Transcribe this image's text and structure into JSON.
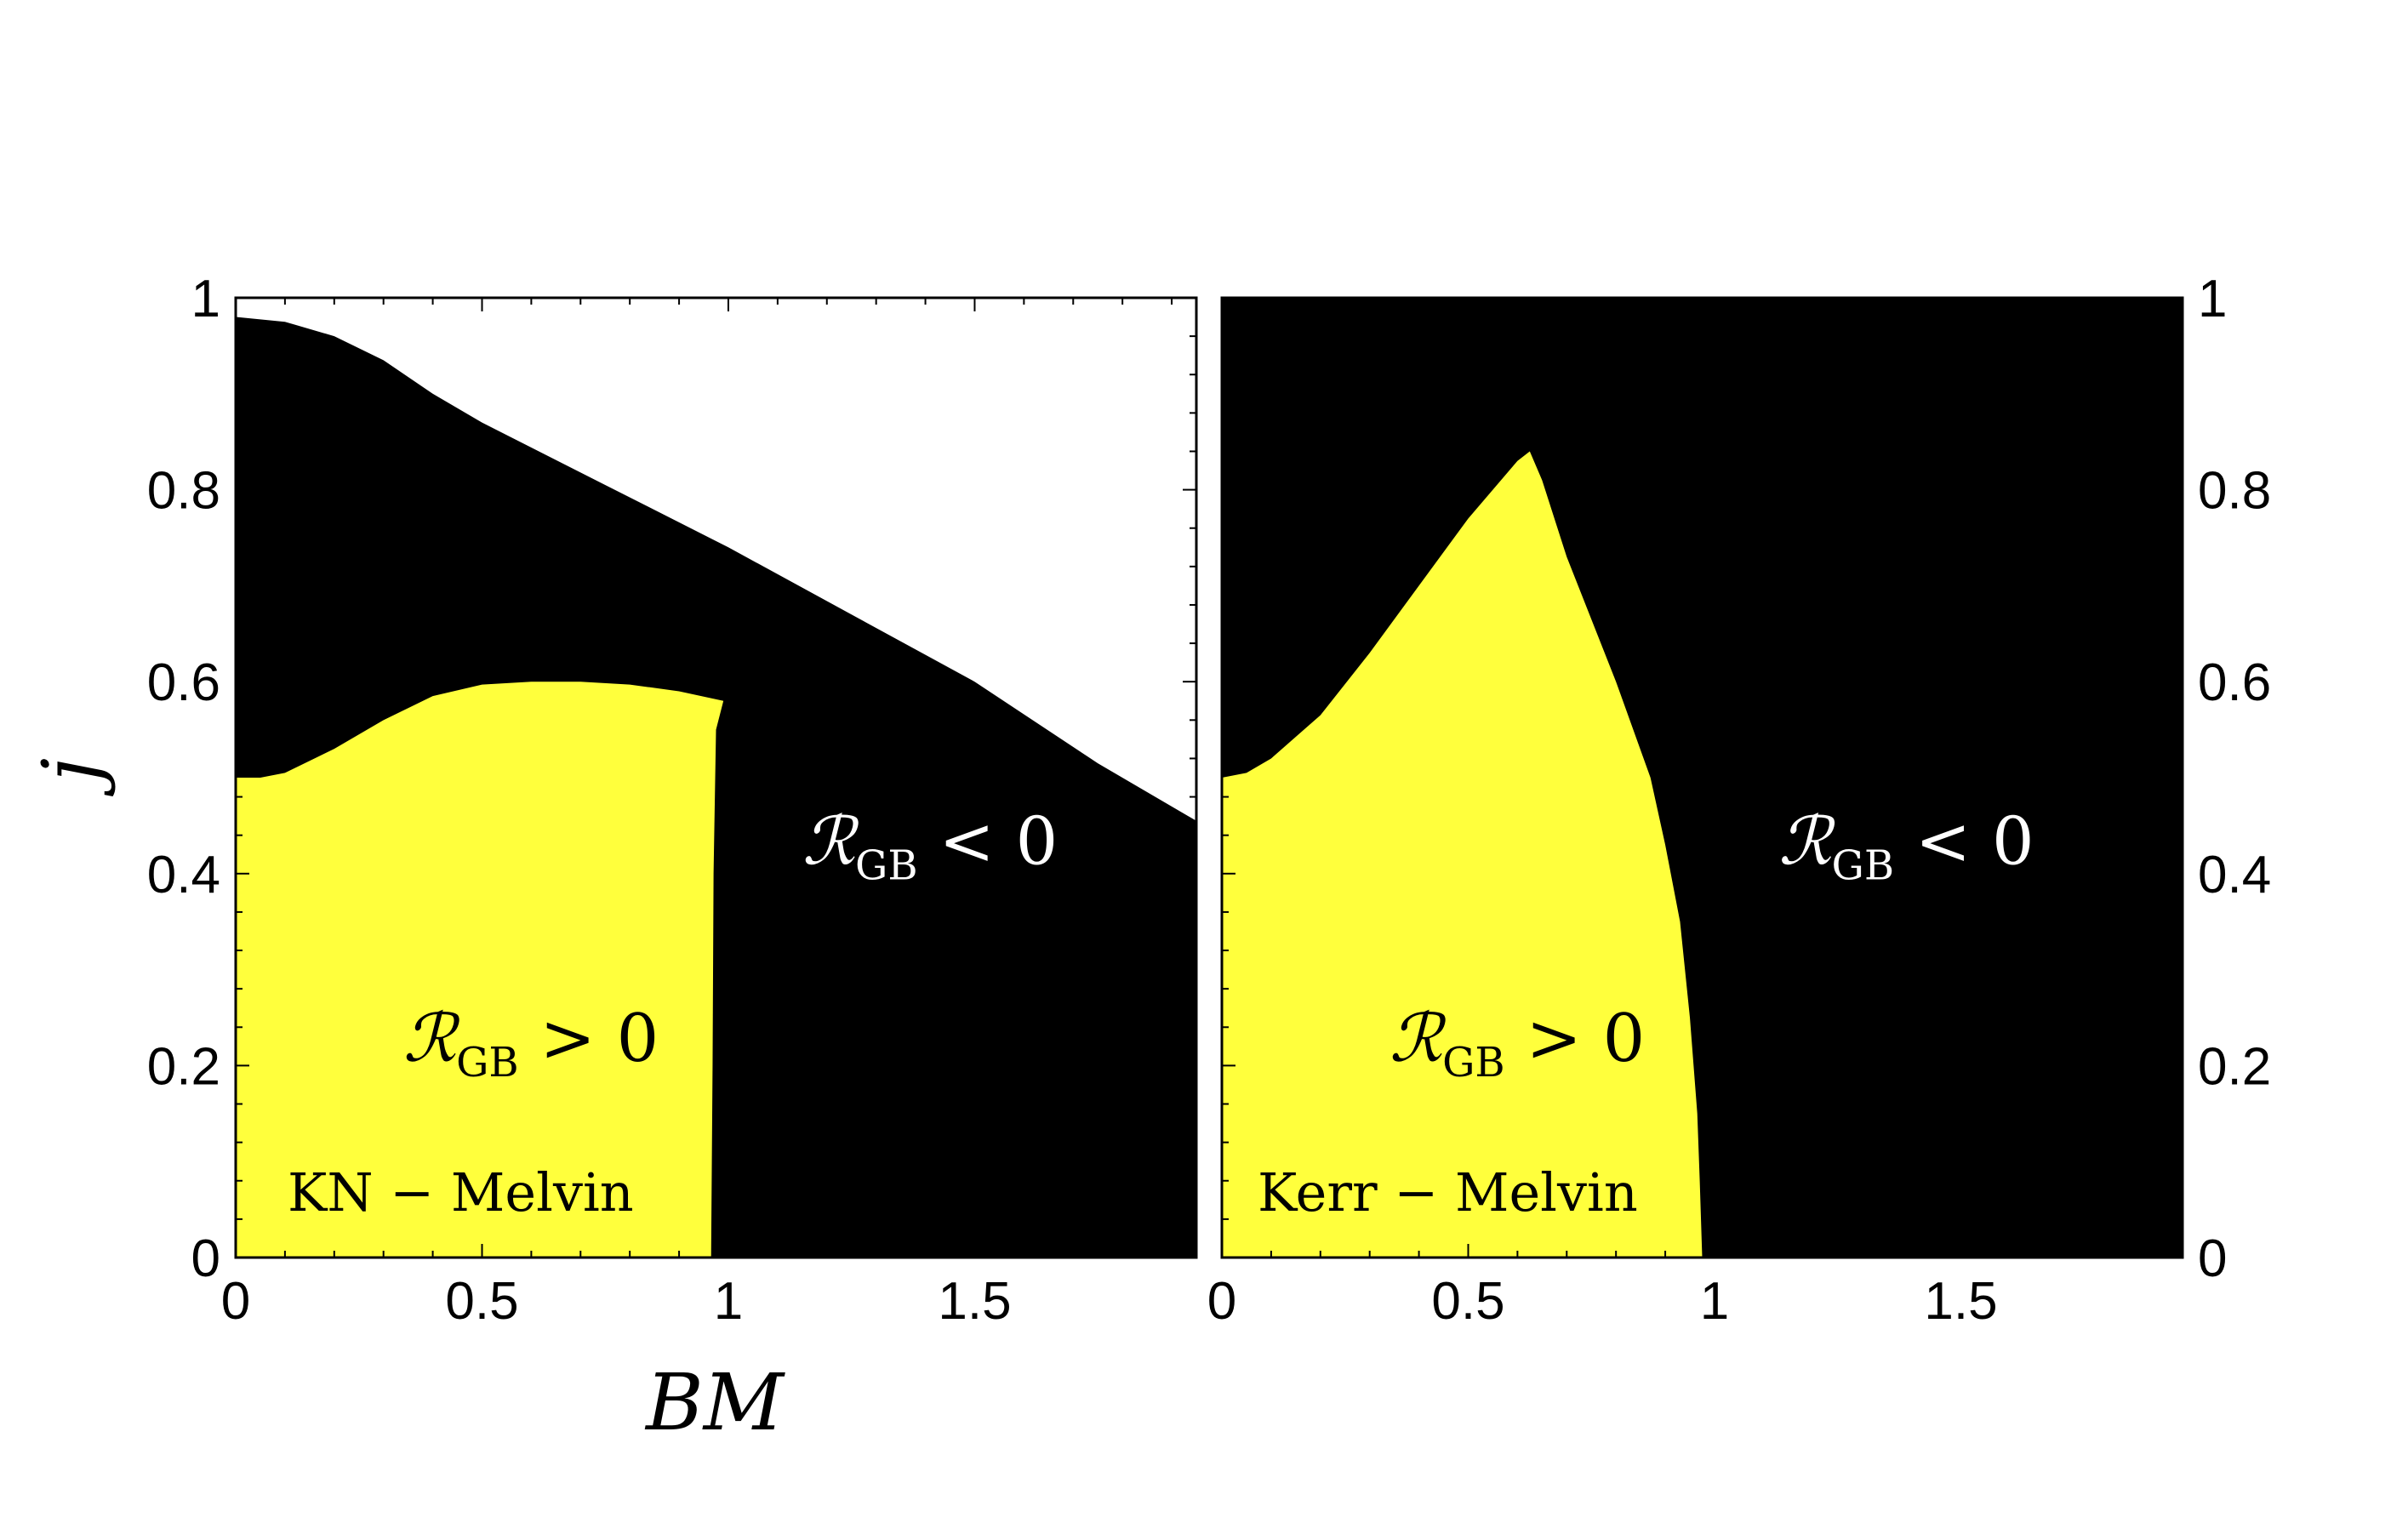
{
  "chart_data": [
    {
      "type": "area",
      "panel_label": "KN − Melvin",
      "xlabel": "BM",
      "ylabel": "j",
      "xlim": [
        0,
        1.95
      ],
      "ylim": [
        0,
        1.0
      ],
      "xticks": [
        "0",
        "0.5",
        "1",
        "1.5"
      ],
      "xtick_values": [
        0,
        0.5,
        1,
        1.5
      ],
      "yticks": [
        "0",
        "0.2",
        "0.4",
        "0.6",
        "0.8",
        "1"
      ],
      "ytick_values": [
        0,
        0.2,
        0.4,
        0.6,
        0.8,
        1.0
      ],
      "ytick_side": "left",
      "colors": {
        "positive": "#ffff3c",
        "negative": "#000000",
        "excluded": "#ffffff"
      },
      "regions": [
        {
          "name": "negative",
          "label_main": "ℛGB < 0",
          "label_text": "ℛ",
          "label_sub": "GB",
          "label_rel": "< 0",
          "label_at": [
            1.15,
            0.41
          ],
          "label_color": "#ffffff",
          "boundary_top": [
            [
              0,
              0.98
            ],
            [
              0.1,
              0.975
            ],
            [
              0.2,
              0.96
            ],
            [
              0.3,
              0.935
            ],
            [
              0.4,
              0.9
            ],
            [
              0.5,
              0.87
            ],
            [
              0.75,
              0.805
            ],
            [
              1.0,
              0.74
            ],
            [
              1.25,
              0.67
            ],
            [
              1.5,
              0.6
            ],
            [
              1.75,
              0.515
            ],
            [
              1.95,
              0.455
            ]
          ]
        },
        {
          "name": "positive",
          "label_main": "ℛGB > 0",
          "label_text": "ℛ",
          "label_sub": "GB",
          "label_rel": "> 0",
          "label_at": [
            0.34,
            0.205
          ],
          "label_color": "#000000",
          "boundary_top": [
            [
              0,
              0.5
            ],
            [
              0.05,
              0.5
            ],
            [
              0.1,
              0.505
            ],
            [
              0.2,
              0.53
            ],
            [
              0.3,
              0.56
            ],
            [
              0.4,
              0.585
            ],
            [
              0.5,
              0.597
            ],
            [
              0.6,
              0.6
            ],
            [
              0.7,
              0.6
            ],
            [
              0.8,
              0.597
            ],
            [
              0.9,
              0.59
            ],
            [
              0.99,
              0.58
            ]
          ],
          "boundary_right": [
            [
              0.99,
              0.58
            ],
            [
              0.975,
              0.55
            ],
            [
              0.97,
              0.4
            ],
            [
              0.968,
              0.2
            ],
            [
              0.965,
              0.0
            ]
          ]
        }
      ]
    },
    {
      "type": "area",
      "panel_label": "Kerr − Melvin",
      "xlabel": "",
      "ylabel": "",
      "xlim": [
        0,
        1.95
      ],
      "ylim": [
        0,
        1.0
      ],
      "xticks": [
        "0",
        "0.5",
        "1",
        "1.5"
      ],
      "xtick_values": [
        0,
        0.5,
        1,
        1.5
      ],
      "yticks": [
        "0",
        "0.2",
        "0.4",
        "0.6",
        "0.8",
        "1"
      ],
      "ytick_values": [
        0,
        0.2,
        0.4,
        0.6,
        0.8,
        1.0
      ],
      "ytick_side": "right",
      "colors": {
        "positive": "#ffff3c",
        "negative": "#000000",
        "excluded": "#ffffff"
      },
      "regions": [
        {
          "name": "negative",
          "label_main": "ℛGB < 0",
          "label_text": "ℛ",
          "label_sub": "GB",
          "label_rel": "< 0",
          "label_at": [
            1.13,
            0.41
          ],
          "label_color": "#ffffff",
          "boundary_top": [
            [
              0,
              0.999
            ],
            [
              1.95,
              0.999
            ]
          ]
        },
        {
          "name": "positive",
          "label_main": "ℛGB > 0",
          "label_text": "ℛ",
          "label_sub": "GB",
          "label_rel": "> 0",
          "label_at": [
            0.34,
            0.205
          ],
          "label_color": "#000000",
          "boundary_top": [
            [
              0,
              0.5
            ],
            [
              0.05,
              0.505
            ],
            [
              0.1,
              0.52
            ],
            [
              0.2,
              0.565
            ],
            [
              0.3,
              0.63
            ],
            [
              0.4,
              0.7
            ],
            [
              0.5,
              0.77
            ],
            [
              0.6,
              0.83
            ],
            [
              0.625,
              0.84
            ]
          ],
          "boundary_right": [
            [
              0.625,
              0.84
            ],
            [
              0.65,
              0.81
            ],
            [
              0.7,
              0.73
            ],
            [
              0.8,
              0.6
            ],
            [
              0.87,
              0.5
            ],
            [
              0.9,
              0.43
            ],
            [
              0.93,
              0.35
            ],
            [
              0.95,
              0.25
            ],
            [
              0.965,
              0.15
            ],
            [
              0.97,
              0.08
            ],
            [
              0.975,
              0.0
            ]
          ]
        }
      ]
    }
  ]
}
